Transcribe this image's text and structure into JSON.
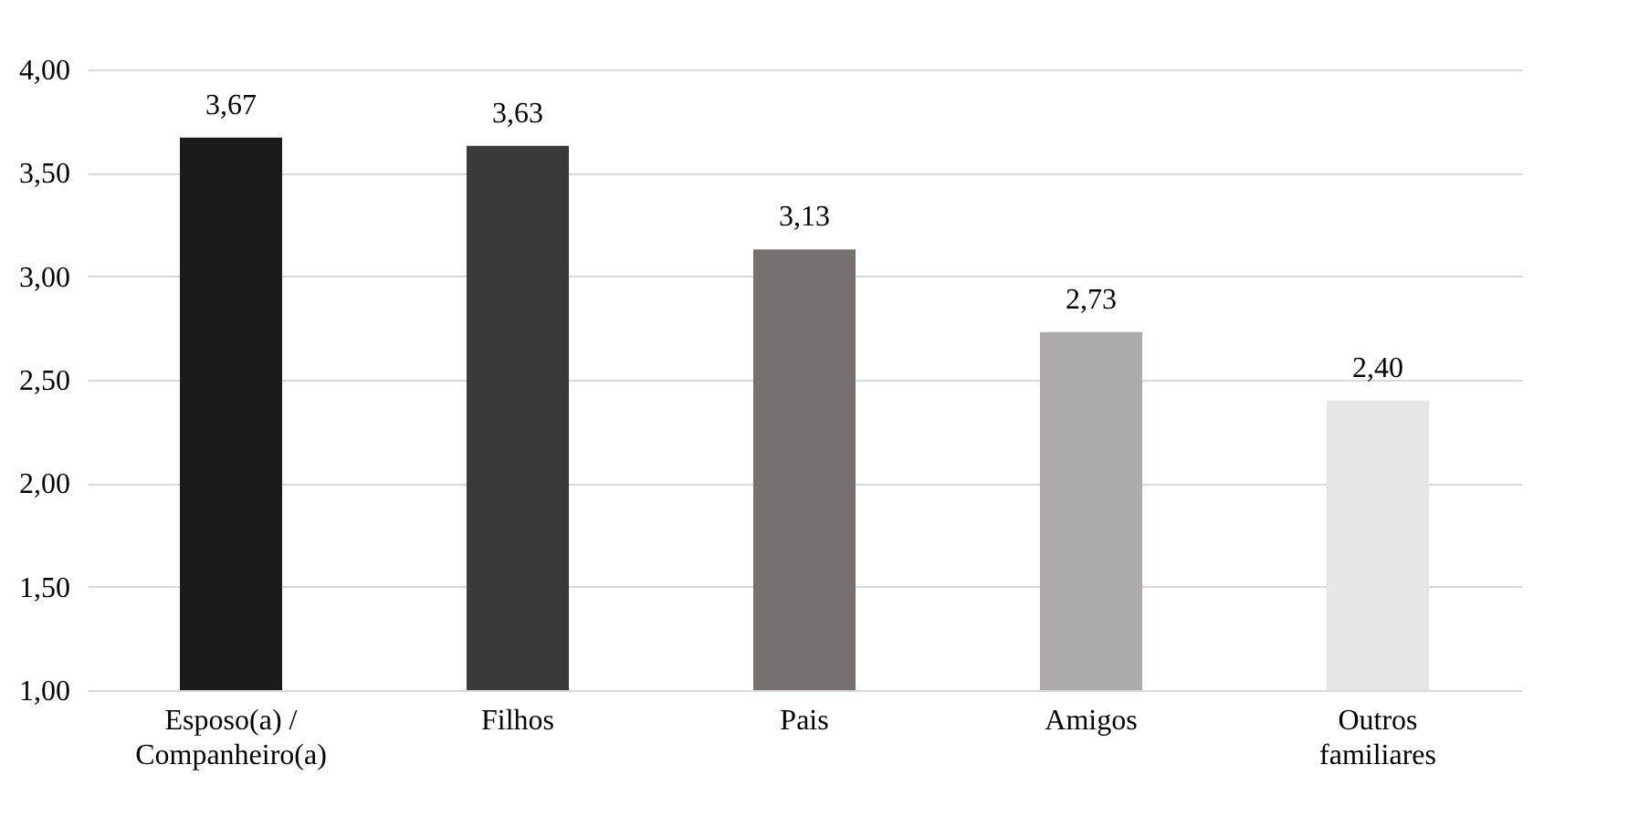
{
  "chart_data": {
    "type": "bar",
    "categories": [
      "Esposo(a) /\nCompanheiro(a)",
      "Filhos",
      "Pais",
      "Amigos",
      "Outros\nfamiliares"
    ],
    "values": [
      3.67,
      3.63,
      3.13,
      2.73,
      2.4
    ],
    "colors": [
      "#1b1b1b",
      "#3b3a38",
      "#767170",
      "#aeaaaa",
      "#e7e6e6"
    ],
    "value_labels": [
      "3,67",
      "3,63",
      "3,13",
      "2,73",
      "2,40"
    ],
    "ylim": [
      1,
      4
    ],
    "yticks": [
      {
        "value": 1,
        "label": "1,00"
      },
      {
        "value": 1.5,
        "label": "1,50"
      },
      {
        "value": 2,
        "label": "2,00"
      },
      {
        "value": 2.5,
        "label": "2,50"
      },
      {
        "value": 3,
        "label": "3,00"
      },
      {
        "value": 3.5,
        "label": "3,50"
      },
      {
        "value": 4,
        "label": "4,00"
      }
    ],
    "grid": "y"
  }
}
